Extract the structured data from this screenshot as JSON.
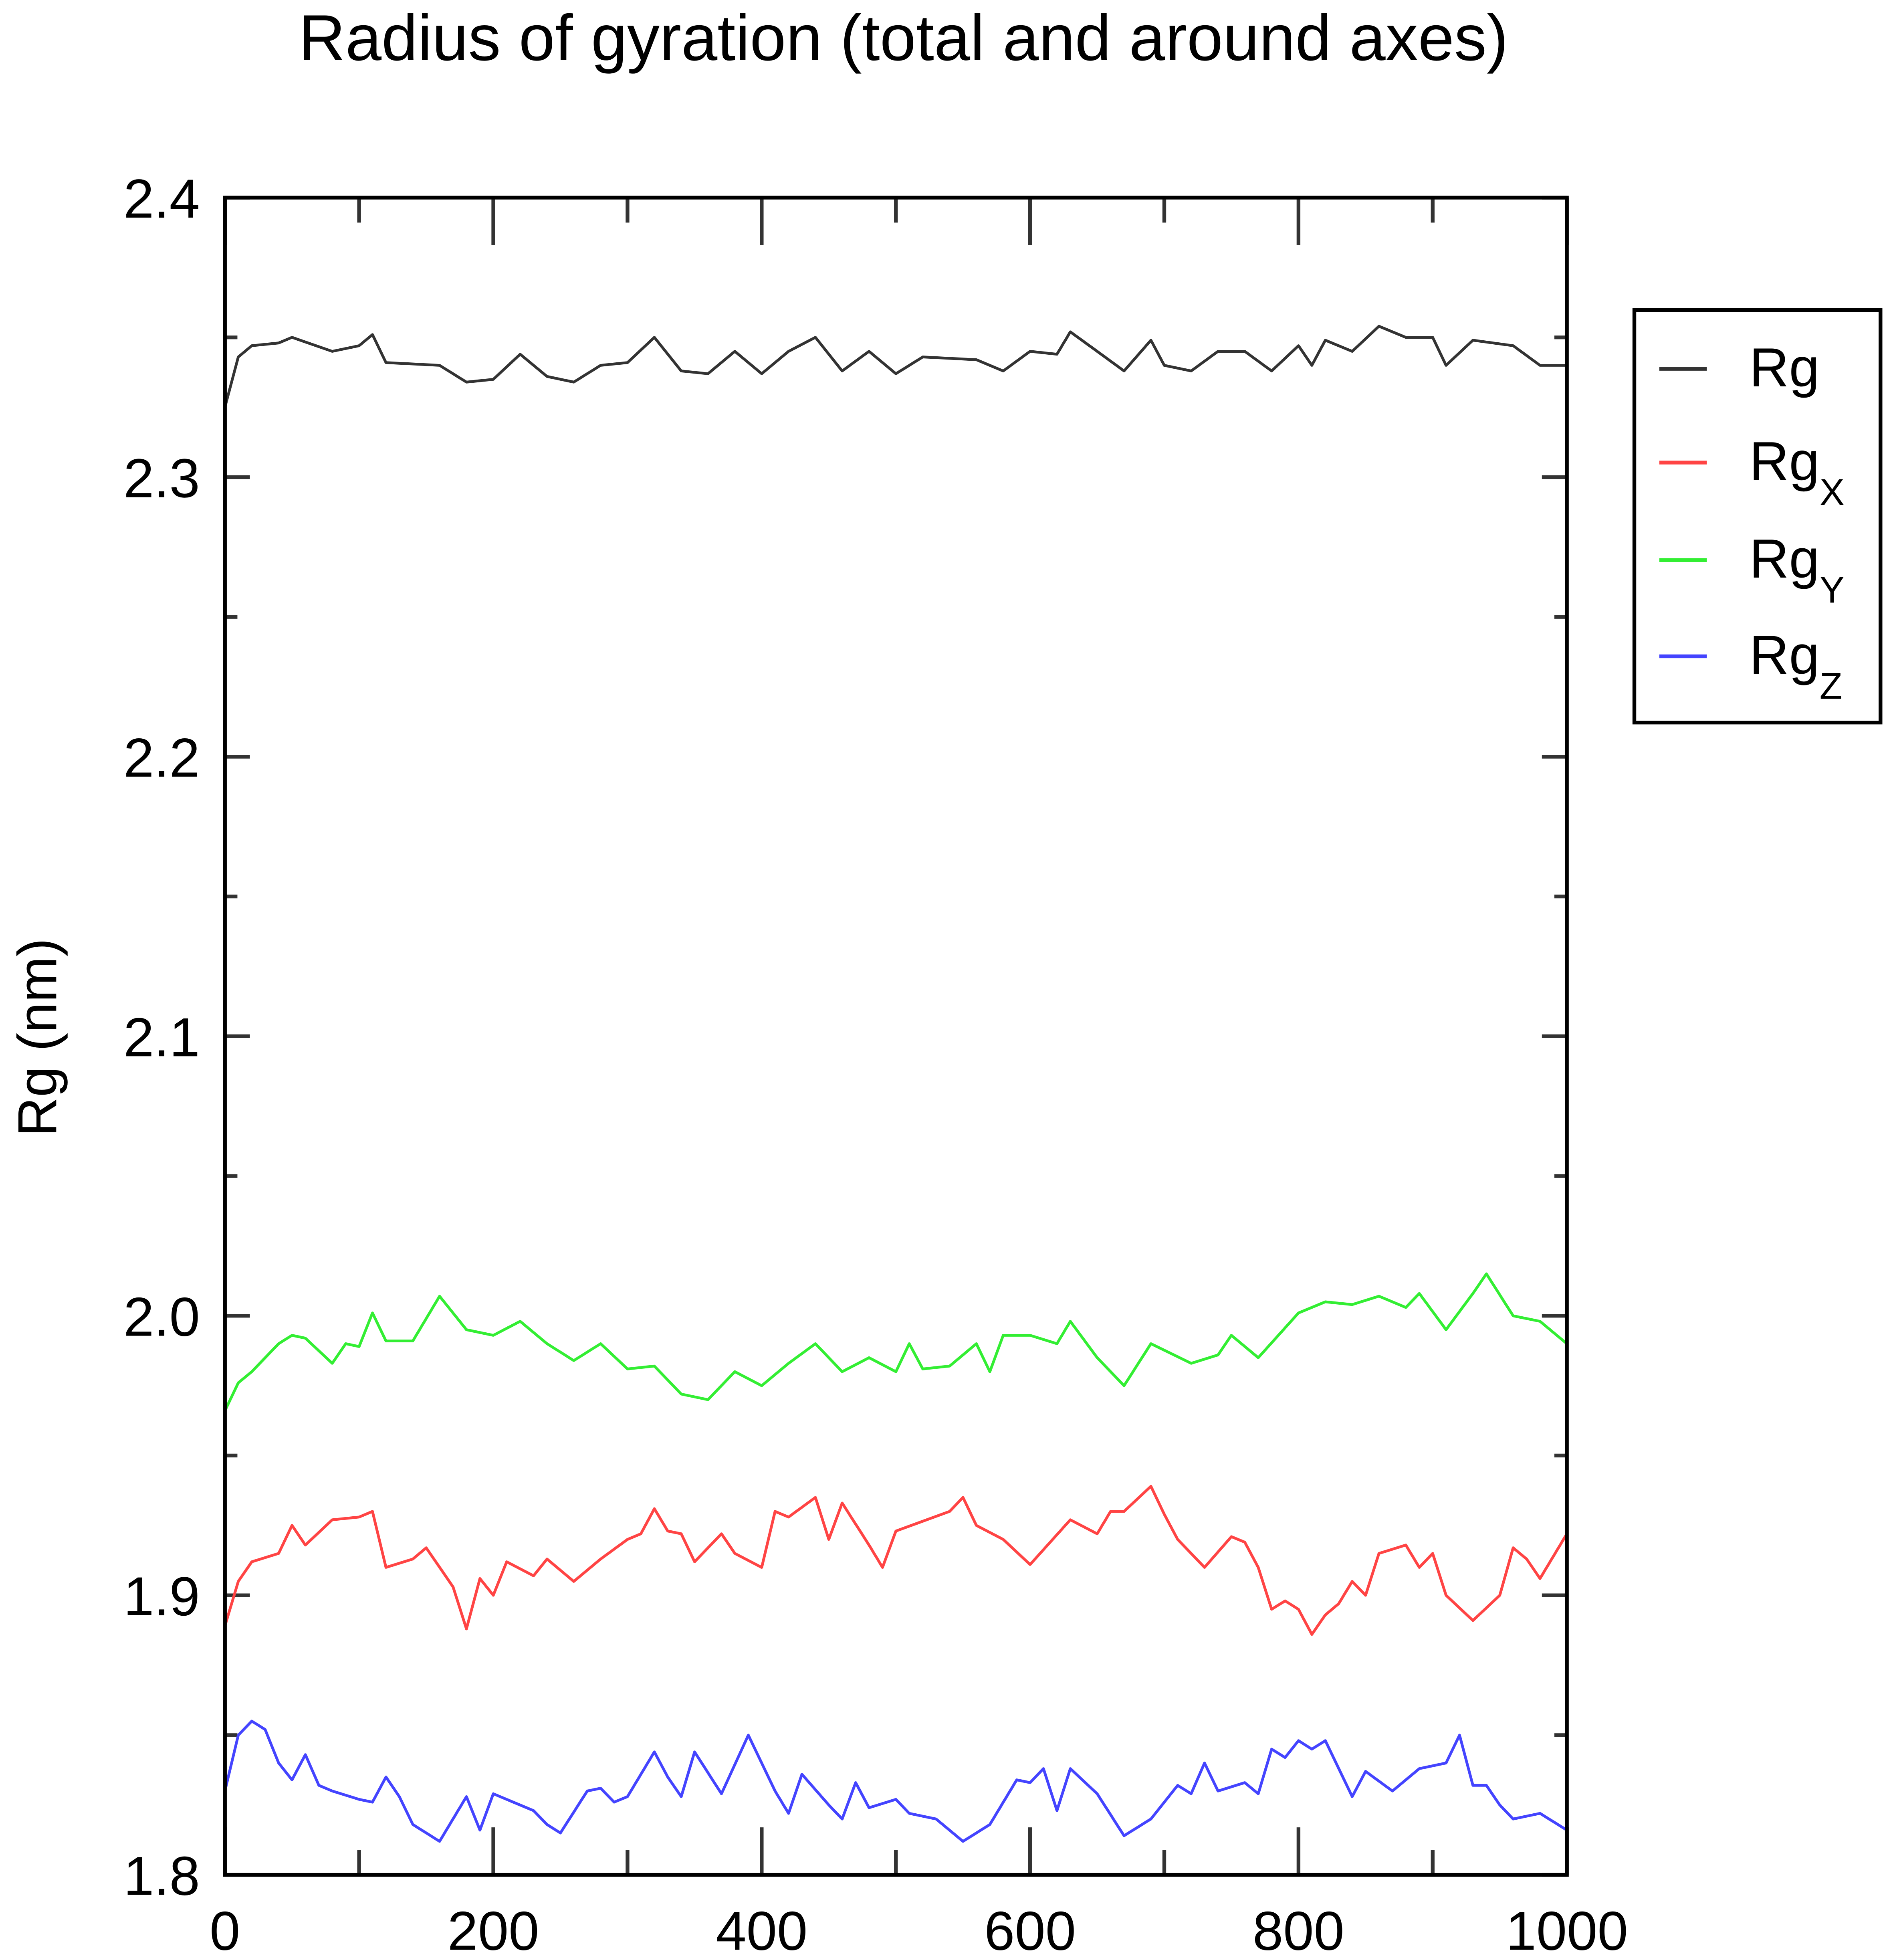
{
  "chart_data": {
    "type": "line",
    "title": "Radius of gyration (total and around axes)",
    "xlabel": "",
    "ylabel": "Rg (nm)",
    "xlim": [
      0,
      1000
    ],
    "ylim": [
      1.8,
      2.4
    ],
    "xticks": [
      0,
      200,
      400,
      600,
      800,
      1000
    ],
    "xticklabels": [
      "0",
      "200",
      "400",
      "600",
      "800",
      "1000"
    ],
    "yticks": [
      1.8,
      1.9,
      2.0,
      2.1,
      2.2,
      2.3,
      2.4
    ],
    "yticklabels": [
      "1.8",
      "1.9",
      "2.0",
      "2.1",
      "2.2",
      "2.3",
      "2.4"
    ],
    "grid": false,
    "legend_position": "right, outside plot",
    "series": [
      {
        "name": "Rg",
        "subscript": "",
        "color": "#333333",
        "x": [
          0,
          10,
          20,
          40,
          50,
          80,
          100,
          110,
          120,
          160,
          180,
          200,
          220,
          240,
          260,
          280,
          300,
          320,
          340,
          360,
          380,
          400,
          420,
          440,
          460,
          480,
          500,
          520,
          560,
          580,
          600,
          620,
          630,
          650,
          670,
          690,
          700,
          720,
          740,
          760,
          780,
          800,
          810,
          820,
          840,
          860,
          880,
          900,
          910,
          930,
          960,
          980,
          1000
        ],
        "y": [
          2.325,
          2.343,
          2.347,
          2.348,
          2.35,
          2.345,
          2.347,
          2.351,
          2.341,
          2.34,
          2.334,
          2.335,
          2.344,
          2.336,
          2.334,
          2.34,
          2.341,
          2.35,
          2.338,
          2.337,
          2.345,
          2.337,
          2.345,
          2.35,
          2.338,
          2.345,
          2.337,
          2.343,
          2.342,
          2.338,
          2.345,
          2.344,
          2.352,
          2.345,
          2.338,
          2.349,
          2.34,
          2.338,
          2.345,
          2.345,
          2.338,
          2.347,
          2.34,
          2.349,
          2.345,
          2.354,
          2.35,
          2.35,
          2.34,
          2.349,
          2.347,
          2.34,
          2.34
        ]
      },
      {
        "name": "Rg",
        "subscript": "X",
        "color": "#ff4444",
        "x": [
          0,
          10,
          20,
          40,
          50,
          60,
          80,
          100,
          110,
          120,
          140,
          150,
          170,
          180,
          190,
          200,
          210,
          230,
          240,
          260,
          280,
          300,
          310,
          320,
          330,
          340,
          350,
          370,
          380,
          400,
          410,
          420,
          440,
          450,
          460,
          480,
          490,
          500,
          540,
          550,
          560,
          580,
          600,
          630,
          650,
          660,
          670,
          690,
          700,
          710,
          730,
          750,
          760,
          770,
          780,
          790,
          800,
          810,
          820,
          830,
          840,
          850,
          860,
          880,
          890,
          900,
          910,
          930,
          950,
          960,
          970,
          980,
          1000
        ],
        "y": [
          1.889,
          1.905,
          1.912,
          1.915,
          1.925,
          1.918,
          1.927,
          1.928,
          1.93,
          1.91,
          1.913,
          1.917,
          1.903,
          1.888,
          1.906,
          1.9,
          1.912,
          1.907,
          1.913,
          1.905,
          1.913,
          1.92,
          1.922,
          1.931,
          1.923,
          1.922,
          1.912,
          1.922,
          1.915,
          1.91,
          1.93,
          1.928,
          1.935,
          1.92,
          1.933,
          1.918,
          1.91,
          1.923,
          1.93,
          1.935,
          1.925,
          1.92,
          1.911,
          1.927,
          1.922,
          1.93,
          1.93,
          1.939,
          1.929,
          1.92,
          1.91,
          1.921,
          1.919,
          1.91,
          1.895,
          1.898,
          1.895,
          1.886,
          1.893,
          1.897,
          1.905,
          1.9,
          1.915,
          1.918,
          1.91,
          1.915,
          1.9,
          1.891,
          1.9,
          1.917,
          1.913,
          1.906,
          1.922
        ]
      },
      {
        "name": "Rg",
        "subscript": "Y",
        "color": "#33ee33",
        "x": [
          0,
          10,
          20,
          40,
          50,
          60,
          80,
          90,
          100,
          110,
          120,
          140,
          160,
          180,
          200,
          220,
          240,
          260,
          280,
          300,
          320,
          340,
          360,
          380,
          400,
          420,
          440,
          460,
          480,
          500,
          510,
          520,
          540,
          560,
          570,
          580,
          600,
          620,
          630,
          650,
          670,
          690,
          720,
          740,
          750,
          770,
          800,
          820,
          840,
          860,
          880,
          890,
          910,
          930,
          940,
          960,
          980,
          1000
        ],
        "y": [
          1.966,
          1.976,
          1.98,
          1.99,
          1.993,
          1.992,
          1.983,
          1.99,
          1.989,
          2.001,
          1.991,
          1.991,
          2.007,
          1.995,
          1.993,
          1.998,
          1.99,
          1.984,
          1.99,
          1.981,
          1.982,
          1.972,
          1.97,
          1.98,
          1.975,
          1.983,
          1.99,
          1.98,
          1.985,
          1.98,
          1.99,
          1.981,
          1.982,
          1.99,
          1.98,
          1.993,
          1.993,
          1.99,
          1.998,
          1.985,
          1.975,
          1.99,
          1.983,
          1.986,
          1.993,
          1.985,
          2.001,
          2.005,
          2.004,
          2.007,
          2.003,
          2.008,
          1.995,
          2.008,
          2.015,
          2.0,
          1.998,
          1.99
        ]
      },
      {
        "name": "Rg",
        "subscript": "Z",
        "color": "#4444ff",
        "x": [
          0,
          10,
          20,
          30,
          40,
          50,
          60,
          70,
          80,
          100,
          110,
          120,
          130,
          140,
          160,
          180,
          190,
          200,
          210,
          230,
          240,
          250,
          270,
          280,
          290,
          300,
          320,
          330,
          340,
          350,
          370,
          390,
          410,
          420,
          430,
          450,
          460,
          470,
          480,
          500,
          510,
          530,
          550,
          570,
          590,
          600,
          610,
          620,
          630,
          650,
          670,
          690,
          710,
          720,
          730,
          740,
          760,
          770,
          780,
          790,
          800,
          810,
          820,
          840,
          850,
          870,
          890,
          910,
          920,
          930,
          940,
          950,
          960,
          980,
          1000
        ],
        "y": [
          1.83,
          1.85,
          1.855,
          1.852,
          1.84,
          1.834,
          1.843,
          1.832,
          1.83,
          1.827,
          1.826,
          1.835,
          1.828,
          1.818,
          1.812,
          1.828,
          1.816,
          1.829,
          1.827,
          1.823,
          1.818,
          1.815,
          1.83,
          1.831,
          1.826,
          1.828,
          1.844,
          1.835,
          1.828,
          1.844,
          1.829,
          1.85,
          1.83,
          1.822,
          1.836,
          1.825,
          1.82,
          1.833,
          1.824,
          1.827,
          1.822,
          1.82,
          1.812,
          1.818,
          1.834,
          1.833,
          1.838,
          1.823,
          1.838,
          1.829,
          1.814,
          1.82,
          1.832,
          1.829,
          1.84,
          1.83,
          1.833,
          1.829,
          1.845,
          1.842,
          1.848,
          1.845,
          1.848,
          1.828,
          1.837,
          1.83,
          1.838,
          1.84,
          1.85,
          1.832,
          1.832,
          1.825,
          1.82,
          1.822,
          1.816
        ]
      }
    ]
  }
}
